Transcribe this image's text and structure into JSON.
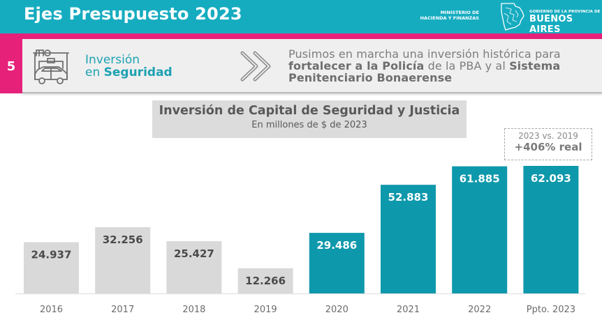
{
  "header": {
    "title": "Ejes Presupuesto 2023",
    "ministry_line1": "MINISTERIO DE",
    "ministry_line2": "HACIENDA Y FINANZAS",
    "gov_small": "GOBIERNO DE LA PROVINCIA DE",
    "gov_big": "BUENOS AIRES"
  },
  "section": {
    "number": "5",
    "title_line1": "Inversión",
    "title_line2_prefix": "en ",
    "title_line2_bold": "Seguridad",
    "icon": "police-car-icon",
    "message": {
      "l1": "Pusimos en marcha una inversión histórica para",
      "l2_bold": "fortalecer a la Policía",
      "l2_rest": " de la PBA y al ",
      "l2_bold2": "Sistema",
      "l3_bold": "Penitenciario Bonaerense"
    }
  },
  "colors": {
    "header_bg": "#16acc0",
    "accent_pink": "#e6217a",
    "bar_grey": "#d9d9d9",
    "bar_teal": "#0e98ab",
    "label_dark": "#4a4a4a",
    "label_light": "#ffffff"
  },
  "note": {
    "line1": "2023 vs. 2019",
    "line2": "+406% real"
  },
  "chart_data": {
    "type": "bar",
    "title": "Inversión de Capital de Seguridad y Justicia",
    "subtitle": "En millones de $ de 2023",
    "xlabel": "",
    "ylabel": "",
    "categories": [
      "2016",
      "2017",
      "2018",
      "2019",
      "2020",
      "2021",
      "2022",
      "Ppto. 2023"
    ],
    "values": [
      24937,
      32256,
      25427,
      12266,
      29486,
      52883,
      61885,
      62093
    ],
    "value_labels": [
      "24.937",
      "32.256",
      "25.427",
      "12.266",
      "29.486",
      "52.883",
      "61.885",
      "62.093"
    ],
    "highlight": [
      false,
      false,
      false,
      false,
      true,
      true,
      true,
      true
    ],
    "ylim": [
      0,
      62093
    ],
    "grid": false,
    "legend": "none",
    "annotation": "2023 vs. 2019 +406% real"
  }
}
